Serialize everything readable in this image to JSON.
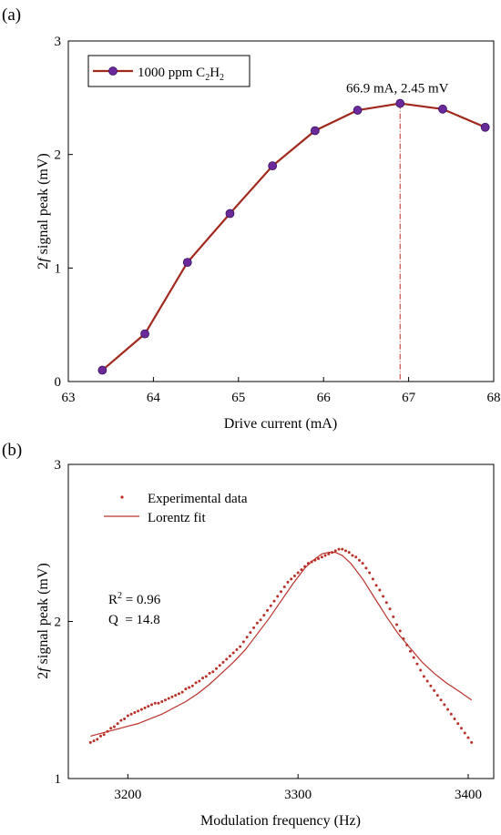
{
  "colors": {
    "line": "#a0281c",
    "marker": "#6a2a9a",
    "fit": "#b8322a",
    "guide": "#b8322a"
  },
  "chart_data": [
    {
      "type": "line",
      "panel_label": "(a)",
      "xlabel": "Drive current (mA)",
      "ylabel_italic": "f",
      "ylabel_prefix": "2",
      "ylabel_rest": " signal peak (mV)",
      "xlim": [
        63,
        68
      ],
      "ylim": [
        0,
        3
      ],
      "xticks": [
        63,
        64,
        65,
        66,
        67,
        68
      ],
      "yticks": [
        0,
        1,
        2,
        3
      ],
      "series": [
        {
          "name": "1000 ppm C2H2",
          "x": [
            63.4,
            63.9,
            64.4,
            64.9,
            65.4,
            65.9,
            66.4,
            66.9,
            67.4,
            67.9
          ],
          "y": [
            0.1,
            0.42,
            1.05,
            1.48,
            1.9,
            2.21,
            2.39,
            2.45,
            2.4,
            2.24
          ]
        }
      ],
      "legend": {
        "position": "top-left",
        "text": "1000 ppm C",
        "sub1": "2",
        "mid": "H",
        "sub2": "2"
      },
      "annotation": {
        "text": "66.9 mA, 2.45 mV",
        "x": 66.9,
        "y": 2.45
      }
    },
    {
      "type": "scatter",
      "panel_label": "(b)",
      "xlabel": "Modulation frequency (Hz)",
      "ylabel_italic": "f",
      "ylabel_prefix": "2",
      "ylabel_rest": " signal peak (mV)",
      "xlim": [
        3165,
        3415
      ],
      "ylim": [
        1,
        3
      ],
      "xticks": [
        3200,
        3300,
        3400
      ],
      "yticks": [
        1,
        2,
        3
      ],
      "series": [
        {
          "name": "Experimental data",
          "x": [
            3178,
            3180,
            3182,
            3184,
            3186,
            3188,
            3190,
            3192,
            3194,
            3196,
            3198,
            3200,
            3202,
            3204,
            3206,
            3208,
            3210,
            3212,
            3214,
            3216,
            3218,
            3220,
            3222,
            3224,
            3226,
            3228,
            3230,
            3232,
            3234,
            3236,
            3238,
            3240,
            3242,
            3244,
            3246,
            3248,
            3250,
            3252,
            3254,
            3256,
            3258,
            3260,
            3262,
            3264,
            3266,
            3268,
            3270,
            3272,
            3274,
            3276,
            3278,
            3280,
            3282,
            3284,
            3286,
            3288,
            3290,
            3292,
            3294,
            3296,
            3298,
            3300,
            3302,
            3304,
            3306,
            3308,
            3310,
            3312,
            3314,
            3316,
            3318,
            3320,
            3322,
            3324,
            3326,
            3328,
            3330,
            3332,
            3334,
            3336,
            3338,
            3340,
            3342,
            3344,
            3346,
            3348,
            3350,
            3352,
            3354,
            3356,
            3358,
            3360,
            3362,
            3364,
            3366,
            3368,
            3370,
            3372,
            3374,
            3376,
            3378,
            3380,
            3382,
            3384,
            3386,
            3388,
            3390,
            3392,
            3394,
            3396,
            3398,
            3400,
            3402
          ],
          "y": [
            1.23,
            1.24,
            1.25,
            1.27,
            1.28,
            1.3,
            1.32,
            1.33,
            1.35,
            1.37,
            1.38,
            1.4,
            1.41,
            1.42,
            1.43,
            1.44,
            1.45,
            1.46,
            1.47,
            1.48,
            1.48,
            1.49,
            1.5,
            1.51,
            1.52,
            1.53,
            1.54,
            1.55,
            1.57,
            1.58,
            1.59,
            1.61,
            1.62,
            1.64,
            1.65,
            1.67,
            1.68,
            1.7,
            1.72,
            1.74,
            1.76,
            1.78,
            1.8,
            1.82,
            1.84,
            1.87,
            1.9,
            1.93,
            1.96,
            1.99,
            2.01,
            2.04,
            2.07,
            2.1,
            2.13,
            2.16,
            2.19,
            2.22,
            2.25,
            2.27,
            2.29,
            2.31,
            2.33,
            2.35,
            2.37,
            2.38,
            2.39,
            2.4,
            2.41,
            2.42,
            2.43,
            2.44,
            2.45,
            2.46,
            2.46,
            2.45,
            2.44,
            2.42,
            2.41,
            2.39,
            2.37,
            2.34,
            2.31,
            2.27,
            2.23,
            2.2,
            2.16,
            2.12,
            2.08,
            2.03,
            1.98,
            1.94,
            1.89,
            1.85,
            1.81,
            1.77,
            1.73,
            1.69,
            1.65,
            1.62,
            1.59,
            1.56,
            1.53,
            1.5,
            1.47,
            1.44,
            1.41,
            1.38,
            1.35,
            1.32,
            1.29,
            1.26,
            1.23
          ]
        },
        {
          "name": "Lorentz fit",
          "x": [
            3178,
            3185,
            3192,
            3199,
            3206,
            3213,
            3220,
            3227,
            3234,
            3241,
            3248,
            3255,
            3262,
            3269,
            3276,
            3283,
            3290,
            3297,
            3304,
            3309,
            3314,
            3318,
            3322,
            3326,
            3331,
            3338,
            3345,
            3352,
            3359,
            3366,
            3373,
            3380,
            3387,
            3394,
            3402
          ],
          "y": [
            1.27,
            1.29,
            1.31,
            1.33,
            1.35,
            1.38,
            1.41,
            1.45,
            1.49,
            1.54,
            1.6,
            1.67,
            1.74,
            1.82,
            1.92,
            2.02,
            2.13,
            2.24,
            2.34,
            2.39,
            2.43,
            2.44,
            2.44,
            2.42,
            2.37,
            2.27,
            2.15,
            2.03,
            1.92,
            1.83,
            1.74,
            1.67,
            1.61,
            1.56,
            1.5
          ]
        }
      ],
      "legend": {
        "position": "top-left"
      },
      "stats": {
        "r_prefix": "R",
        "r_sup": "2",
        "r_value": " = 0.96",
        "q_line": "Q  = 14.8"
      }
    }
  ]
}
